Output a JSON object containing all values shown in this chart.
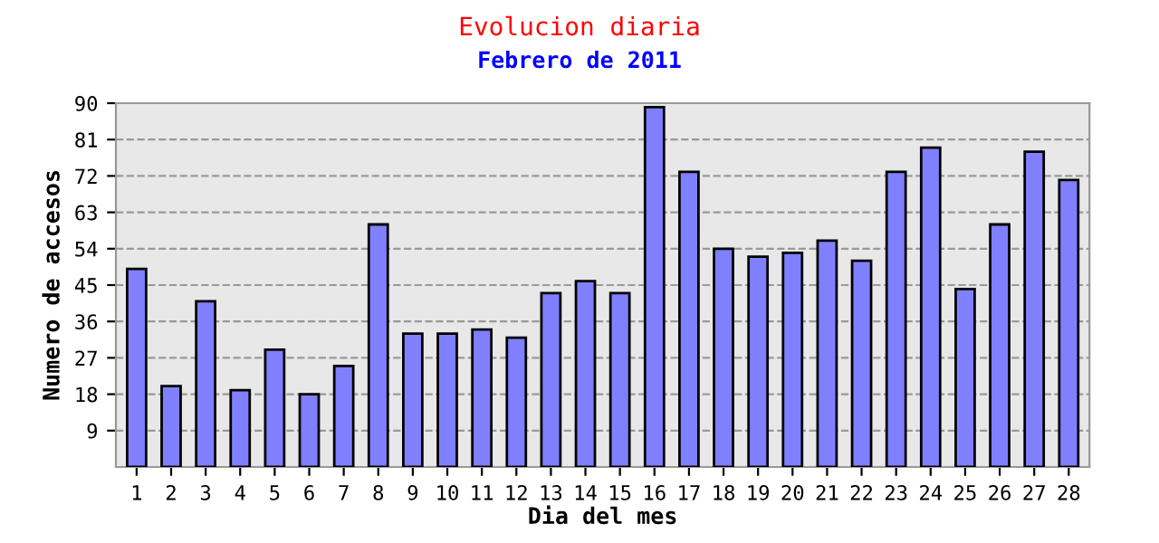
{
  "chart_data": {
    "type": "bar",
    "title": "Evolucion diaria",
    "subtitle": "Febrero de 2011",
    "xlabel": "Dia del mes",
    "ylabel": "Numero de accesos",
    "categories": [
      "1",
      "2",
      "3",
      "4",
      "5",
      "6",
      "7",
      "8",
      "9",
      "10",
      "11",
      "12",
      "13",
      "14",
      "15",
      "16",
      "17",
      "18",
      "19",
      "20",
      "21",
      "22",
      "23",
      "24",
      "25",
      "26",
      "27",
      "28"
    ],
    "values": [
      49,
      20,
      41,
      19,
      29,
      18,
      25,
      60,
      33,
      33,
      34,
      32,
      43,
      46,
      43,
      89,
      73,
      54,
      52,
      53,
      56,
      51,
      73,
      79,
      44,
      60,
      78,
      71
    ],
    "color": "#8080ff",
    "ylim": [
      0,
      90
    ],
    "yticks": [
      9,
      18,
      27,
      36,
      45,
      54,
      63,
      72,
      81,
      90
    ],
    "grid": "y",
    "line_style": "dashed"
  }
}
